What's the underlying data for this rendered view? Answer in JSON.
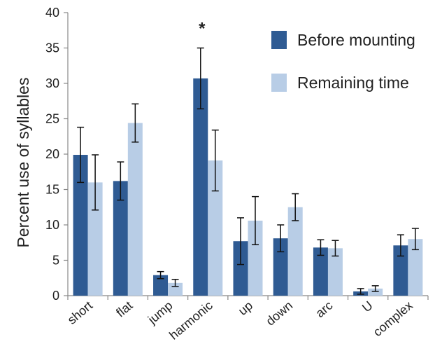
{
  "chart_data": {
    "type": "bar",
    "title": "",
    "xlabel": "",
    "ylabel": "Percent use of syllables",
    "ylim": [
      0,
      40
    ],
    "yticks": [
      0,
      5,
      10,
      15,
      20,
      25,
      30,
      35,
      40
    ],
    "grid": false,
    "legend_position": "top-right",
    "categories": [
      "short",
      "flat",
      "jump",
      "harmonic",
      "up",
      "down",
      "arc",
      "U",
      "complex"
    ],
    "series": [
      {
        "name": "Before mounting",
        "color": "#2f5b93",
        "values": [
          19.9,
          16.2,
          2.9,
          30.7,
          7.7,
          8.1,
          6.8,
          0.6,
          7.1
        ],
        "errors": [
          3.9,
          2.7,
          0.5,
          4.3,
          3.3,
          1.9,
          1.1,
          0.4,
          1.5
        ]
      },
      {
        "name": "Remaining time",
        "color": "#b8cde6",
        "values": [
          16.0,
          24.4,
          1.8,
          19.1,
          10.6,
          12.5,
          6.7,
          1.0,
          8.0
        ],
        "errors": [
          3.9,
          2.7,
          0.5,
          4.3,
          3.4,
          1.9,
          1.1,
          0.4,
          1.5
        ]
      }
    ],
    "annotations": [
      {
        "text": "*",
        "category": "harmonic"
      }
    ]
  }
}
